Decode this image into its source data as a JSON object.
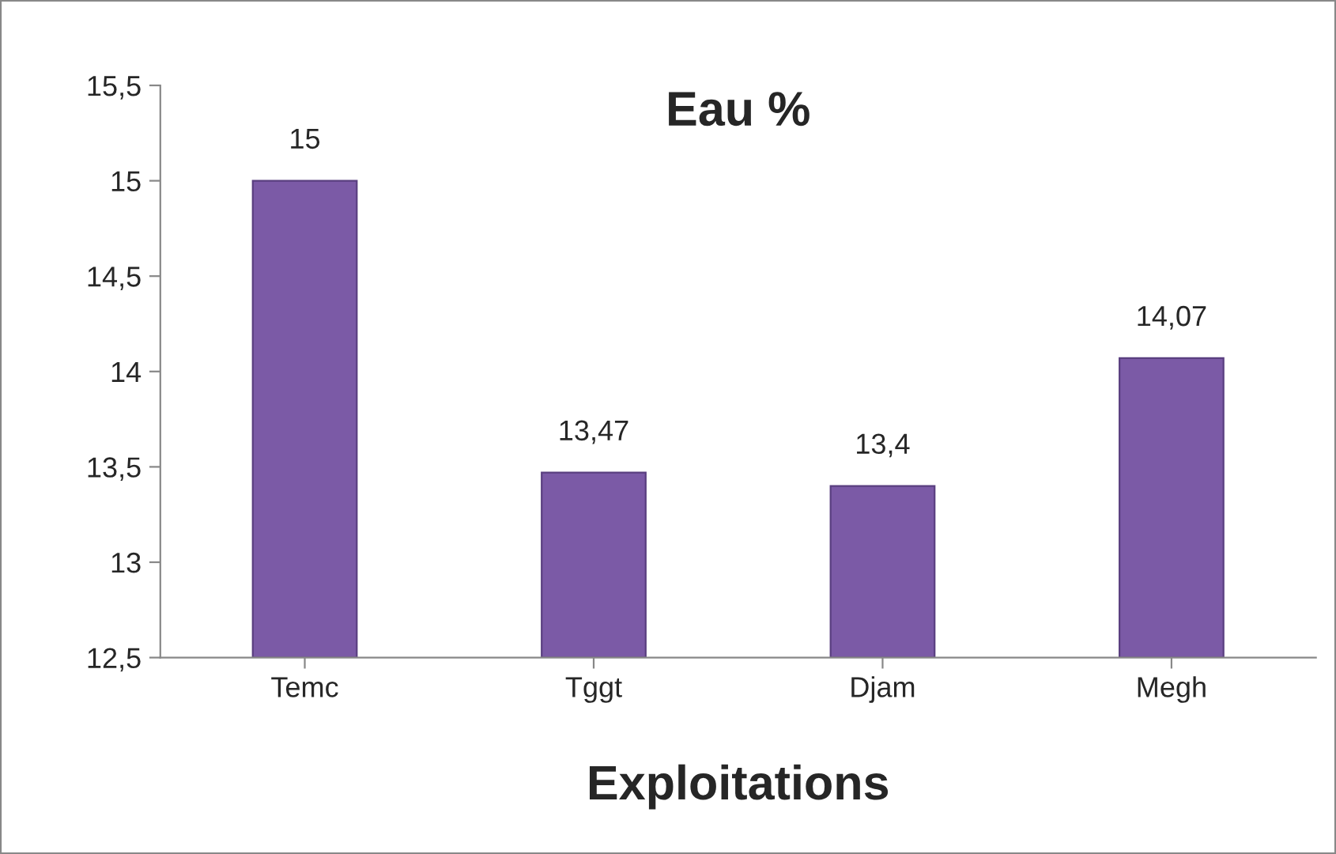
{
  "chart_data": {
    "type": "bar",
    "title": "Eau %",
    "xlabel": "Exploitations",
    "categories": [
      "Temc",
      "Tggt",
      "Djam",
      "Megh"
    ],
    "values": [
      15,
      13.47,
      13.4,
      14.07
    ],
    "value_labels": [
      "15",
      "13,47",
      "13,4",
      "14,07"
    ],
    "color": "#7b5aa6",
    "ylim": [
      12.5,
      15.5
    ],
    "yticks": [
      {
        "value": 12.5,
        "label": "12,5"
      },
      13,
      {
        "value": 13.5,
        "label": "13,5"
      },
      14,
      {
        "value": 14.5,
        "label": "14,5"
      },
      15,
      {
        "value": 15.5,
        "label": "15,5"
      }
    ],
    "grid": false,
    "legend": false
  }
}
